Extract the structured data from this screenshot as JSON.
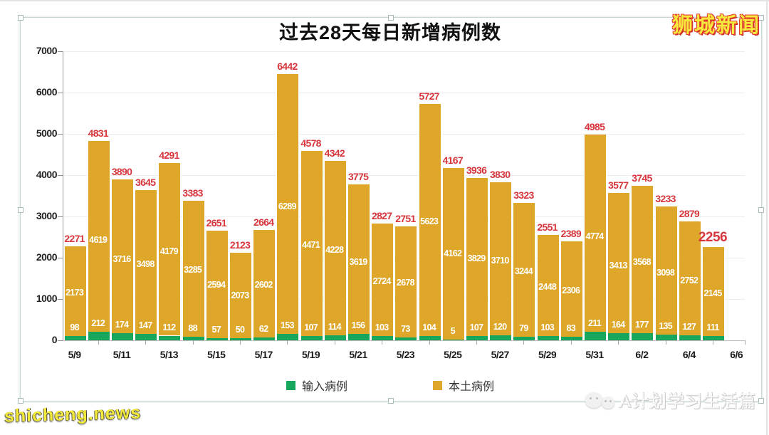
{
  "page": {
    "brand": "狮城新闻",
    "watermark_left": "shicheng.news",
    "watermark_right": "A计划学习生活篇"
  },
  "chart_data": {
    "type": "bar",
    "stacked": true,
    "title": "过去28天每日新增病例数",
    "ylim": [
      0,
      7000
    ],
    "yticks": [
      0,
      1000,
      2000,
      3000,
      4000,
      5000,
      6000,
      7000
    ],
    "x_tick_labels": [
      "5/9",
      "5/11",
      "5/13",
      "5/15",
      "5/17",
      "5/19",
      "5/21",
      "5/23",
      "5/25",
      "5/27",
      "5/29",
      "5/31",
      "6/2",
      "6/4",
      "6/6"
    ],
    "grid": true,
    "legend_position": "bottom",
    "legend": [
      {
        "label": "输入病例",
        "color": "#16a75c"
      },
      {
        "label": "本土病例",
        "color": "#dfa729"
      }
    ],
    "series": [
      {
        "name": "输入病例",
        "color": "#16a75c",
        "values": [
          98,
          212,
          174,
          147,
          112,
          88,
          57,
          50,
          62,
          153,
          107,
          114,
          156,
          103,
          73,
          104,
          5,
          107,
          120,
          79,
          103,
          83,
          211,
          164,
          177,
          135,
          127,
          111
        ]
      },
      {
        "name": "本土病例",
        "color": "#dfa729",
        "values": [
          2173,
          4619,
          3716,
          3498,
          4179,
          3285,
          2594,
          2073,
          2602,
          6289,
          4471,
          4228,
          3619,
          2724,
          2678,
          5623,
          4162,
          3829,
          3710,
          3244,
          2448,
          2306,
          4774,
          3413,
          3568,
          3098,
          2752,
          2145
        ]
      }
    ],
    "totals": [
      2271,
      4831,
      3890,
      3645,
      4291,
      3383,
      2651,
      2123,
      2664,
      6442,
      4578,
      4342,
      3775,
      2827,
      2751,
      5727,
      4167,
      3936,
      3830,
      3323,
      2551,
      2389,
      4985,
      3577,
      3745,
      3233,
      2879,
      2256
    ],
    "total_label_color": "#d6363c",
    "highlight_last_total": true
  }
}
